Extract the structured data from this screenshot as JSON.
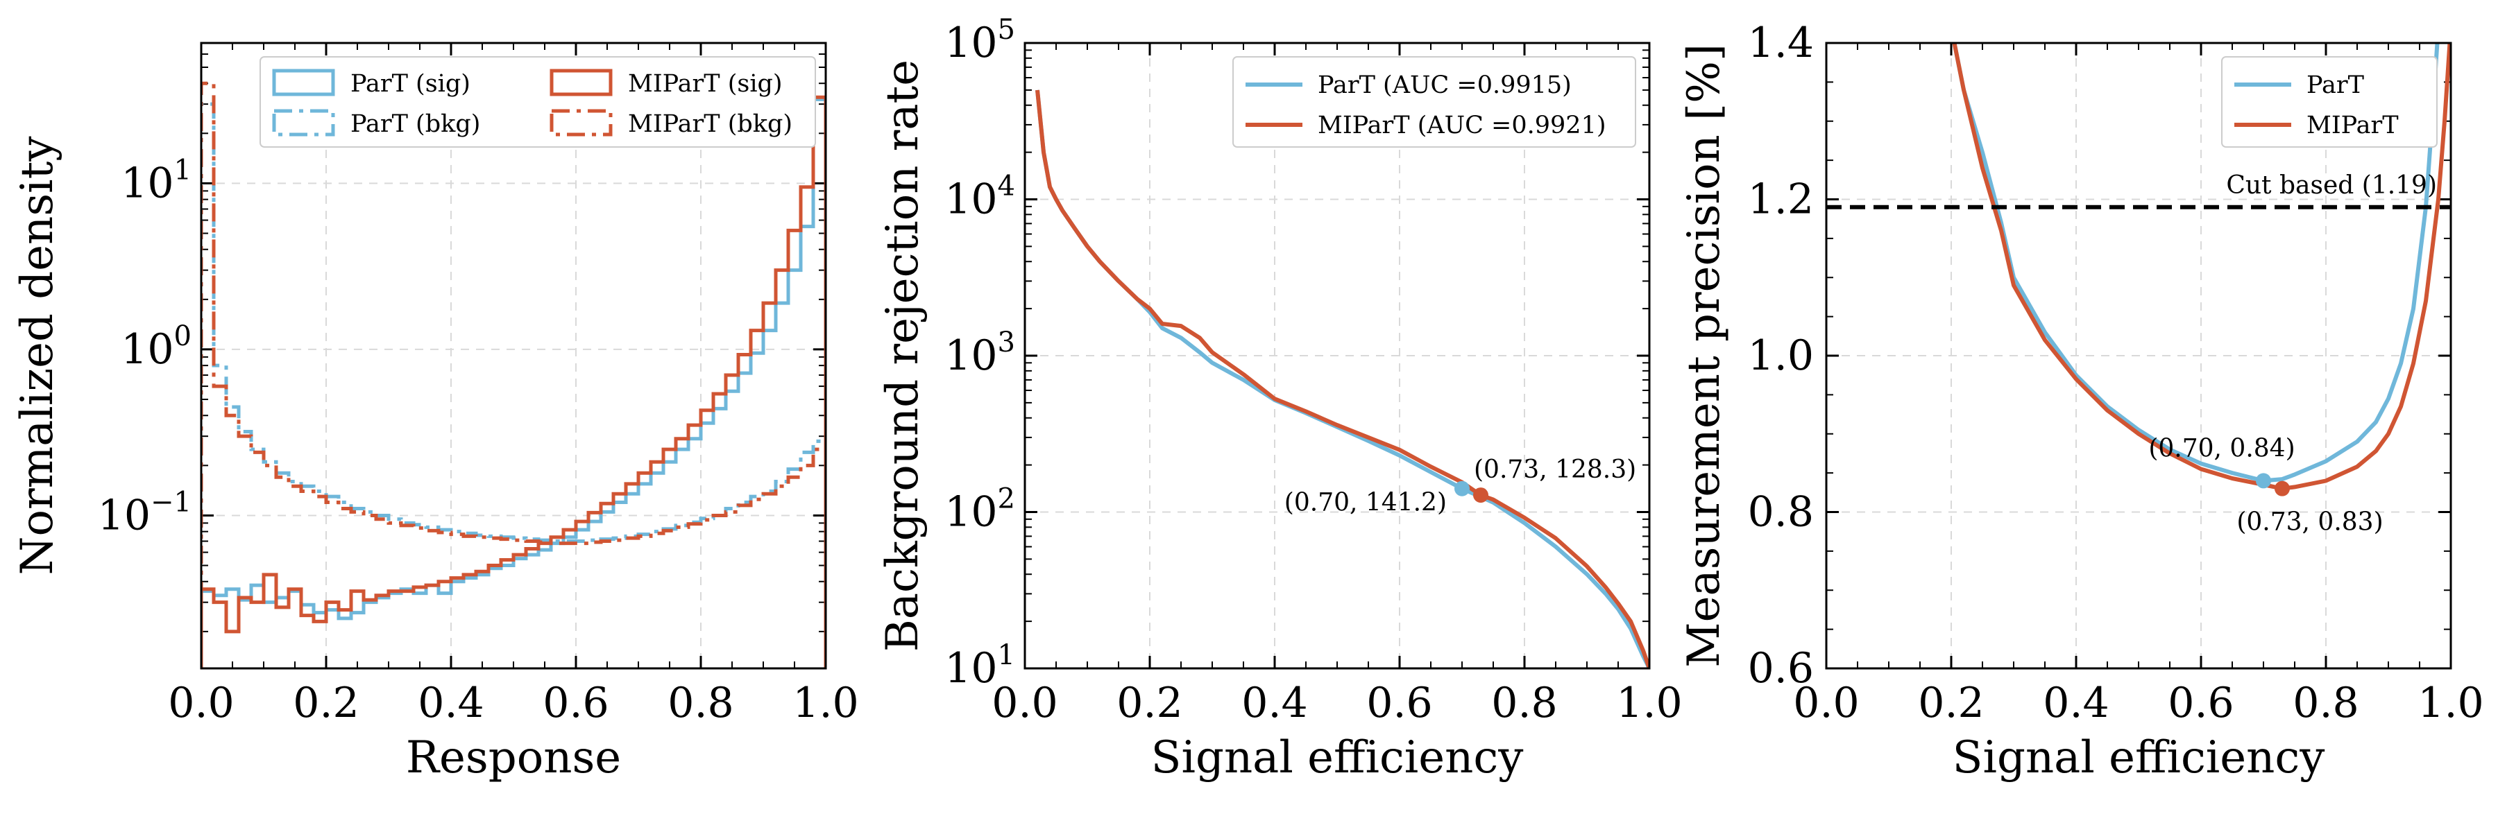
{
  "colors": {
    "part": "#6FB7DA",
    "mipart": "#D05533",
    "cut": "#000000"
  },
  "chart_data": [
    {
      "type": "line",
      "xlabel": "Response",
      "ylabel": "Normalized density",
      "xlim": [
        0.0,
        1.0
      ],
      "ylim": [
        0.012,
        70
      ],
      "yscale": "log",
      "grid": true,
      "xticks": [
        "0.0",
        "0.2",
        "0.4",
        "0.6",
        "0.8",
        "1.0"
      ],
      "yticks": [
        {
          "value": 0.1,
          "label": "10",
          "exp": "−1"
        },
        {
          "value": 1,
          "label": "10",
          "exp": "0"
        },
        {
          "value": 10,
          "label": "10",
          "exp": "1"
        }
      ],
      "legend": {
        "location": "top-center",
        "entries": [
          {
            "label": "ParT (sig)",
            "series": 0
          },
          {
            "label": "ParT (bkg)",
            "series": 1
          },
          {
            "label": "MIParT (sig)",
            "series": 2
          },
          {
            "label": "MIParT (bkg)",
            "series": 3
          }
        ]
      },
      "bins": 50,
      "series": [
        {
          "name": "ParT (sig)",
          "color": "#6FB7DA",
          "style": "solid",
          "values": [
            0.035,
            0.033,
            0.036,
            0.031,
            0.038,
            0.03,
            0.032,
            0.035,
            0.029,
            0.026,
            0.027,
            0.024,
            0.026,
            0.03,
            0.032,
            0.034,
            0.036,
            0.034,
            0.038,
            0.034,
            0.04,
            0.042,
            0.044,
            0.048,
            0.05,
            0.055,
            0.058,
            0.062,
            0.068,
            0.074,
            0.082,
            0.092,
            0.105,
            0.12,
            0.135,
            0.155,
            0.18,
            0.21,
            0.25,
            0.29,
            0.36,
            0.44,
            0.56,
            0.72,
            0.95,
            1.3,
            1.9,
            3.0,
            5.5,
            32
          ]
        },
        {
          "name": "ParT (bkg)",
          "color": "#6FB7DA",
          "style": "dashdot",
          "values": [
            30,
            0.8,
            0.45,
            0.32,
            0.25,
            0.21,
            0.18,
            0.16,
            0.15,
            0.14,
            0.13,
            0.12,
            0.11,
            0.105,
            0.1,
            0.095,
            0.09,
            0.088,
            0.085,
            0.082,
            0.08,
            0.078,
            0.076,
            0.075,
            0.074,
            0.073,
            0.072,
            0.071,
            0.07,
            0.07,
            0.07,
            0.071,
            0.072,
            0.073,
            0.075,
            0.077,
            0.08,
            0.083,
            0.087,
            0.091,
            0.096,
            0.1,
            0.11,
            0.12,
            0.13,
            0.14,
            0.16,
            0.19,
            0.24,
            0.28
          ]
        },
        {
          "name": "MIParT (sig)",
          "color": "#D05533",
          "style": "solid",
          "values": [
            0.036,
            0.03,
            0.02,
            0.032,
            0.03,
            0.044,
            0.028,
            0.036,
            0.025,
            0.023,
            0.03,
            0.027,
            0.035,
            0.031,
            0.033,
            0.035,
            0.035,
            0.037,
            0.038,
            0.04,
            0.042,
            0.044,
            0.046,
            0.05,
            0.054,
            0.058,
            0.063,
            0.068,
            0.074,
            0.082,
            0.092,
            0.104,
            0.118,
            0.135,
            0.155,
            0.18,
            0.21,
            0.25,
            0.29,
            0.35,
            0.43,
            0.54,
            0.7,
            0.93,
            1.3,
            1.9,
            3.0,
            5.2,
            9.5,
            33
          ]
        },
        {
          "name": "MIParT (bkg)",
          "color": "#D05533",
          "style": "dashdot",
          "values": [
            40,
            0.6,
            0.4,
            0.3,
            0.24,
            0.2,
            0.17,
            0.15,
            0.14,
            0.13,
            0.12,
            0.11,
            0.105,
            0.1,
            0.095,
            0.09,
            0.087,
            0.084,
            0.081,
            0.079,
            0.077,
            0.075,
            0.074,
            0.073,
            0.072,
            0.071,
            0.07,
            0.069,
            0.068,
            0.068,
            0.068,
            0.069,
            0.07,
            0.071,
            0.073,
            0.075,
            0.078,
            0.081,
            0.085,
            0.089,
            0.094,
            0.1,
            0.105,
            0.115,
            0.125,
            0.135,
            0.15,
            0.17,
            0.2,
            0.25
          ]
        }
      ]
    },
    {
      "type": "line",
      "xlabel": "Signal efficiency",
      "ylabel": "Background rejection rate",
      "xlim": [
        0.0,
        1.0
      ],
      "ylim": [
        10,
        100000
      ],
      "yscale": "log",
      "grid": true,
      "xticks": [
        "0.0",
        "0.2",
        "0.4",
        "0.6",
        "0.8",
        "1.0"
      ],
      "yticks": [
        {
          "value": 10,
          "label": "10",
          "exp": "1"
        },
        {
          "value": 100,
          "label": "10",
          "exp": "2"
        },
        {
          "value": 1000,
          "label": "10",
          "exp": "3"
        },
        {
          "value": 10000,
          "label": "10",
          "exp": "4"
        },
        {
          "value": 100000,
          "label": "10",
          "exp": "5"
        }
      ],
      "legend": {
        "location": "top-right",
        "entries": [
          {
            "label": "ParT (AUC =0.9915)",
            "series": 0
          },
          {
            "label": "MIParT (AUC =0.9921)",
            "series": 1
          }
        ]
      },
      "series": [
        {
          "name": "ParT (AUC =0.9915)",
          "color": "#6FB7DA",
          "x": [
            0.02,
            0.03,
            0.04,
            0.05,
            0.06,
            0.08,
            0.1,
            0.12,
            0.15,
            0.18,
            0.2,
            0.22,
            0.25,
            0.28,
            0.3,
            0.35,
            0.4,
            0.45,
            0.5,
            0.55,
            0.6,
            0.65,
            0.7,
            0.73,
            0.75,
            0.8,
            0.85,
            0.9,
            0.93,
            0.95,
            0.97,
            0.99,
            1.0
          ],
          "y": [
            50000,
            20000,
            12000,
            10000,
            8500,
            6500,
            5000,
            4000,
            3000,
            2300,
            1900,
            1500,
            1300,
            1050,
            900,
            700,
            520,
            430,
            350,
            285,
            230,
            180,
            141.2,
            125,
            115,
            85,
            60,
            40,
            30,
            24,
            18,
            12,
            10
          ]
        },
        {
          "name": "MIParT (AUC =0.9921)",
          "color": "#D05533",
          "x": [
            0.02,
            0.03,
            0.04,
            0.05,
            0.06,
            0.08,
            0.1,
            0.12,
            0.15,
            0.18,
            0.2,
            0.22,
            0.25,
            0.28,
            0.3,
            0.35,
            0.4,
            0.45,
            0.5,
            0.55,
            0.6,
            0.65,
            0.7,
            0.73,
            0.75,
            0.8,
            0.85,
            0.9,
            0.93,
            0.95,
            0.97,
            0.99,
            1.0
          ],
          "y": [
            50000,
            20000,
            12000,
            10000,
            8500,
            6500,
            5000,
            4000,
            3000,
            2300,
            2000,
            1600,
            1550,
            1300,
            1050,
            760,
            530,
            440,
            360,
            300,
            250,
            195,
            155,
            128.3,
            120,
            92,
            68,
            45,
            33,
            26,
            20,
            13,
            10
          ]
        }
      ],
      "markers": [
        {
          "x": 0.7,
          "y": 141.2,
          "series": 0,
          "label": "(0.70,  141.2)"
        },
        {
          "x": 0.73,
          "y": 128.3,
          "series": 1,
          "label": "(0.73,  128.3)"
        }
      ]
    },
    {
      "type": "line",
      "xlabel": "Signal efficiency",
      "ylabel": "Measurement precision [%]",
      "xlim": [
        0.0,
        1.0
      ],
      "ylim": [
        0.6,
        1.4
      ],
      "yscale": "linear",
      "grid": true,
      "xticks": [
        "0.0",
        "0.2",
        "0.4",
        "0.6",
        "0.8",
        "1.0"
      ],
      "yticks": [
        {
          "value": 0.6,
          "label": "0.6"
        },
        {
          "value": 0.8,
          "label": "0.8"
        },
        {
          "value": 1.0,
          "label": "1.0"
        },
        {
          "value": 1.2,
          "label": "1.2"
        },
        {
          "value": 1.4,
          "label": "1.4"
        }
      ],
      "legend": {
        "location": "top-right",
        "entries": [
          {
            "label": "ParT",
            "series": 0
          },
          {
            "label": "MIParT",
            "series": 1
          }
        ]
      },
      "series": [
        {
          "name": "ParT",
          "color": "#6FB7DA",
          "x": [
            0.2,
            0.22,
            0.25,
            0.28,
            0.3,
            0.35,
            0.4,
            0.45,
            0.5,
            0.55,
            0.6,
            0.65,
            0.7,
            0.73,
            0.75,
            0.8,
            0.85,
            0.88,
            0.9,
            0.92,
            0.94,
            0.96,
            0.97,
            0.98
          ],
          "y": [
            1.42,
            1.34,
            1.26,
            1.17,
            1.1,
            1.03,
            0.975,
            0.935,
            0.905,
            0.88,
            0.862,
            0.85,
            0.84,
            0.842,
            0.848,
            0.865,
            0.89,
            0.915,
            0.945,
            0.99,
            1.06,
            1.19,
            1.3,
            1.42
          ]
        },
        {
          "name": "MIParT",
          "color": "#D05533",
          "x": [
            0.2,
            0.22,
            0.25,
            0.28,
            0.3,
            0.35,
            0.4,
            0.45,
            0.5,
            0.55,
            0.6,
            0.65,
            0.7,
            0.73,
            0.75,
            0.8,
            0.85,
            0.88,
            0.9,
            0.92,
            0.94,
            0.96,
            0.98,
            0.99,
            1.0
          ],
          "y": [
            1.42,
            1.34,
            1.24,
            1.16,
            1.09,
            1.02,
            0.97,
            0.93,
            0.9,
            0.875,
            0.855,
            0.843,
            0.835,
            0.83,
            0.832,
            0.84,
            0.858,
            0.878,
            0.9,
            0.935,
            0.99,
            1.07,
            1.2,
            1.3,
            1.42
          ]
        }
      ],
      "hline": {
        "y": 1.19,
        "label": "Cut based (1.19)",
        "color": "#000000",
        "style": "dashed"
      },
      "markers": [
        {
          "x": 0.7,
          "y": 0.84,
          "series": 0,
          "label": "(0.70, 0.84)"
        },
        {
          "x": 0.73,
          "y": 0.83,
          "series": 1,
          "label": "(0.73, 0.83)"
        }
      ]
    }
  ]
}
